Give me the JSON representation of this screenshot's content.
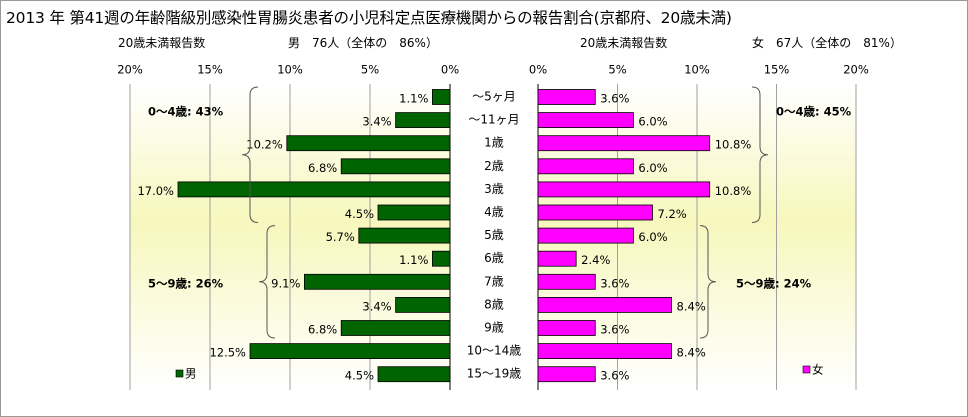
{
  "title": "2013 年 第41週の年齢階級別感染性胃腸炎患者の小児科定点医療機関からの報告割合(京都府、20歳未満)",
  "left_header": {
    "label": "20歳未満報告数",
    "summary": "男　76人（全体の　86%）"
  },
  "right_header": {
    "label": "20歳未満報告数",
    "summary": "女　67人（全体の　81%）"
  },
  "colors": {
    "male": "#006400",
    "female": "#ff00ff",
    "plot_bg_light": "#ffffff",
    "plot_bg_dark": "#f7f7bd",
    "grid": "#a0a0a0"
  },
  "chart_data": [
    {
      "type": "bar",
      "orientation": "horizontal-reversed",
      "categories": [
        "～5ヶ月",
        "～11ヶ月",
        "1歳",
        "2歳",
        "3歳",
        "4歳",
        "5歳",
        "6歳",
        "7歳",
        "8歳",
        "9歳",
        "10～14歳",
        "15～19歳"
      ],
      "series": [
        {
          "name": "男",
          "values": [
            1.1,
            3.4,
            10.2,
            6.8,
            17.0,
            4.5,
            5.7,
            1.1,
            9.1,
            3.4,
            6.8,
            12.5,
            4.5
          ]
        }
      ],
      "data_labels": [
        "1.1%",
        "3.4%",
        "10.2%",
        "6.8%",
        "17.0%",
        "4.5%",
        "5.7%",
        "1.1%",
        "9.1%",
        "3.4%",
        "6.8%",
        "12.5%",
        "4.5%"
      ],
      "xlim": [
        0,
        20
      ],
      "xticks": [
        "20%",
        "15%",
        "10%",
        "5%",
        "0%"
      ],
      "grid": true,
      "annotations": [
        "0～4歳: 43%",
        "5～9歳: 26%"
      ],
      "legend": "bottom-left"
    },
    {
      "type": "bar",
      "orientation": "horizontal",
      "categories": [
        "～5ヶ月",
        "～11ヶ月",
        "1歳",
        "2歳",
        "3歳",
        "4歳",
        "5歳",
        "6歳",
        "7歳",
        "8歳",
        "9歳",
        "10～14歳",
        "15～19歳"
      ],
      "series": [
        {
          "name": "女",
          "values": [
            3.6,
            6.0,
            10.8,
            6.0,
            10.8,
            7.2,
            6.0,
            2.4,
            3.6,
            8.4,
            3.6,
            8.4,
            3.6
          ]
        }
      ],
      "data_labels": [
        "3.6%",
        "6.0%",
        "10.8%",
        "6.0%",
        "10.8%",
        "7.2%",
        "6.0%",
        "2.4%",
        "3.6%",
        "8.4%",
        "3.6%",
        "8.4%",
        "3.6%"
      ],
      "xlim": [
        0,
        20
      ],
      "xticks": [
        "0%",
        "5%",
        "10%",
        "15%",
        "20%"
      ],
      "grid": true,
      "annotations": [
        "0～4歳: 45%",
        "5～9歳: 24%"
      ],
      "legend": "bottom-right"
    }
  ]
}
